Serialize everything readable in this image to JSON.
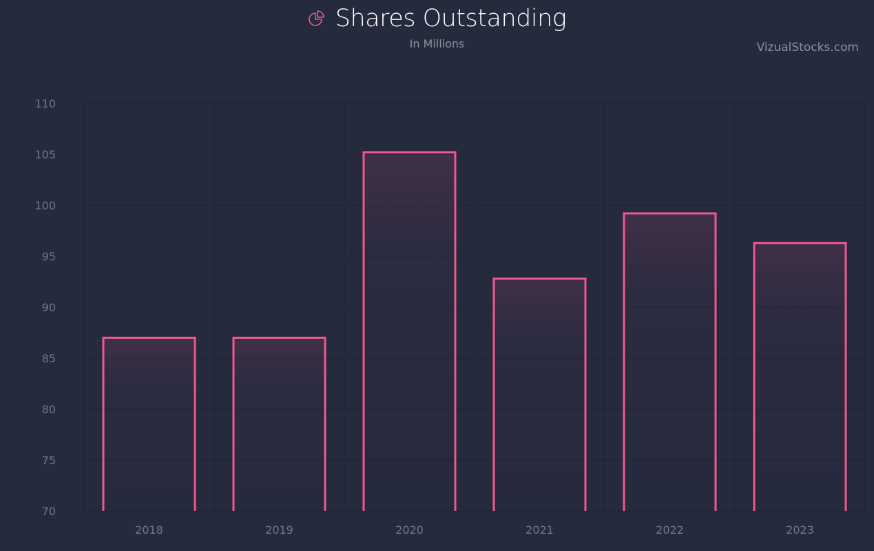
{
  "header": {
    "title": "Shares Outstanding",
    "subtitle": "In Millions",
    "watermark": "VizualStocks.com",
    "icon": "pie-chart-icon"
  },
  "colors": {
    "background": "#262a3d",
    "bar_stroke": "#f0588e",
    "grid": "#1e2233",
    "tick_text": "#737686",
    "title_text": "#ffffff",
    "subtitle_text": "#8d909c"
  },
  "chart_data": {
    "type": "bar",
    "title": "Shares Outstanding",
    "subtitle": "In Millions",
    "xlabel": "",
    "ylabel": "",
    "categories": [
      "2018",
      "2019",
      "2020",
      "2021",
      "2022",
      "2023"
    ],
    "values": [
      87.0,
      87.0,
      105.2,
      92.8,
      99.2,
      96.3
    ],
    "ylim": [
      70,
      110
    ],
    "yticks": [
      70,
      75,
      80,
      85,
      90,
      95,
      100,
      105,
      110
    ],
    "grid": true,
    "legend": "none"
  }
}
